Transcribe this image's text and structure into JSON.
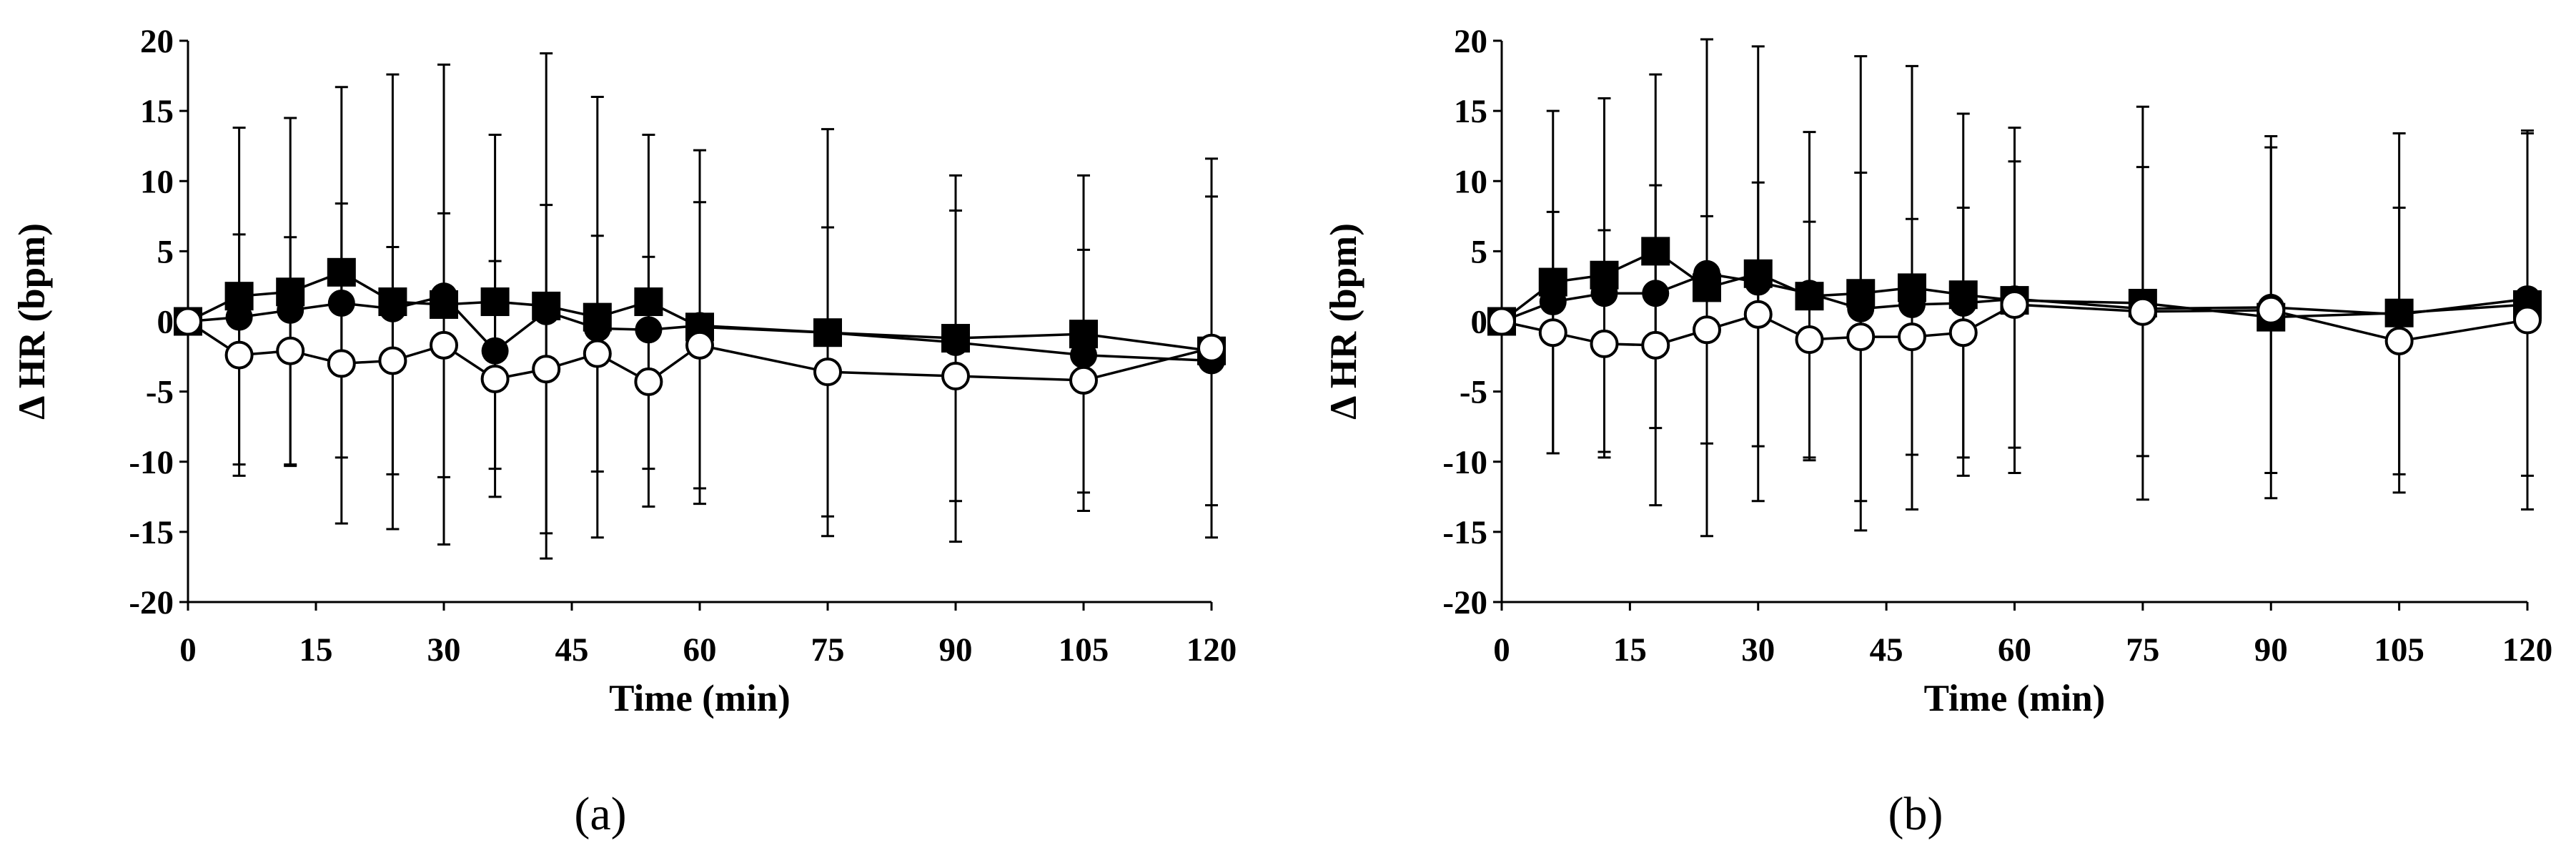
{
  "chart_data": [
    {
      "type": "line",
      "panel_label": "(a)",
      "xlabel": "Time (min)",
      "ylabel": "Δ HR (bpm)",
      "xlim": [
        0,
        120
      ],
      "ylim": [
        -20,
        20
      ],
      "xticks": [
        0,
        15,
        30,
        45,
        60,
        75,
        90,
        105,
        120
      ],
      "yticks": [
        -20,
        -15,
        -10,
        -5,
        0,
        5,
        10,
        15,
        20
      ],
      "grid": false,
      "series": [
        {
          "marker": "filled-circle",
          "x": [
            0,
            6,
            12,
            18,
            24,
            30,
            36,
            42,
            48,
            54,
            60,
            75,
            90,
            105,
            120
          ],
          "values": [
            0,
            0.3,
            0.8,
            1.3,
            0.9,
            1.8,
            -2.1,
            0.7,
            -0.5,
            -0.6,
            -0.3,
            -0.8,
            -1.5,
            -2.4,
            -2.8
          ],
          "error": [
            null,
            null,
            null,
            null,
            null,
            null,
            null,
            null,
            null,
            null,
            null,
            null,
            null,
            null,
            null
          ]
        },
        {
          "marker": "filled-square",
          "x": [
            0,
            6,
            12,
            18,
            24,
            30,
            36,
            42,
            48,
            54,
            60,
            75,
            90,
            105,
            120
          ],
          "values": [
            0,
            1.8,
            2.1,
            3.5,
            1.4,
            1.2,
            1.4,
            1.1,
            0.3,
            1.4,
            -0.4,
            -0.8,
            -1.2,
            -0.9,
            -2.1
          ],
          "error": [
            null,
            12.0,
            12.4,
            13.2,
            16.2,
            17.1,
            11.9,
            18.0,
            15.7,
            11.9,
            12.6,
            14.5,
            11.6,
            11.3,
            11.0
          ]
        },
        {
          "marker": "open-circle",
          "x": [
            0,
            6,
            12,
            18,
            24,
            30,
            36,
            42,
            48,
            54,
            60,
            75,
            90,
            105,
            120
          ],
          "values": [
            0,
            -2.4,
            -2.1,
            -3.0,
            -2.8,
            -1.7,
            -4.1,
            -3.4,
            -2.3,
            -4.3,
            -1.7,
            -3.6,
            -3.9,
            -4.2,
            -1.9
          ],
          "error": [
            null,
            8.6,
            8.1,
            11.4,
            8.1,
            9.4,
            8.4,
            11.7,
            8.4,
            8.9,
            10.2,
            10.3,
            11.8,
            9.3,
            13.5
          ]
        }
      ]
    },
    {
      "type": "line",
      "panel_label": "(b)",
      "xlabel": "Time (min)",
      "ylabel": "Δ HR (bpm)",
      "xlim": [
        0,
        120
      ],
      "ylim": [
        -20,
        20
      ],
      "xticks": [
        0,
        15,
        30,
        45,
        60,
        75,
        90,
        105,
        120
      ],
      "yticks": [
        -20,
        -15,
        -10,
        -5,
        0,
        5,
        10,
        15,
        20
      ],
      "grid": false,
      "series": [
        {
          "marker": "filled-circle",
          "x": [
            0,
            6,
            12,
            18,
            24,
            30,
            36,
            42,
            48,
            54,
            60,
            75,
            90,
            105,
            120
          ],
          "values": [
            0,
            1.4,
            2.0,
            2.0,
            3.4,
            2.8,
            2.0,
            0.9,
            1.2,
            1.3,
            1.6,
            0.9,
            1.0,
            0.5,
            1.6
          ],
          "error": [
            null,
            null,
            null,
            null,
            null,
            null,
            null,
            null,
            null,
            null,
            null,
            null,
            null,
            null,
            null
          ]
        },
        {
          "marker": "filled-square",
          "x": [
            0,
            6,
            12,
            18,
            24,
            30,
            36,
            42,
            48,
            54,
            60,
            75,
            90,
            105,
            120
          ],
          "values": [
            0,
            2.8,
            3.3,
            5.0,
            2.4,
            3.4,
            1.8,
            2.0,
            2.4,
            1.9,
            1.5,
            1.3,
            0.3,
            0.6,
            1.2
          ],
          "error": [
            null,
            12.2,
            12.6,
            12.6,
            17.7,
            16.2,
            11.7,
            16.9,
            15.8,
            12.9,
            12.3,
            14.0,
            12.9,
            12.8,
            12.2
          ]
        },
        {
          "marker": "open-circle",
          "x": [
            0,
            6,
            12,
            18,
            24,
            30,
            36,
            42,
            48,
            54,
            60,
            75,
            90,
            105,
            120
          ],
          "values": [
            0,
            -0.8,
            -1.6,
            -1.7,
            -0.6,
            0.5,
            -1.3,
            -1.1,
            -1.1,
            -0.8,
            1.2,
            0.7,
            0.8,
            -1.4,
            0.1
          ],
          "error": [
            null,
            8.6,
            8.1,
            11.4,
            8.1,
            9.4,
            8.4,
            11.7,
            8.4,
            8.9,
            10.2,
            10.3,
            11.6,
            9.5,
            13.5
          ]
        }
      ]
    }
  ]
}
